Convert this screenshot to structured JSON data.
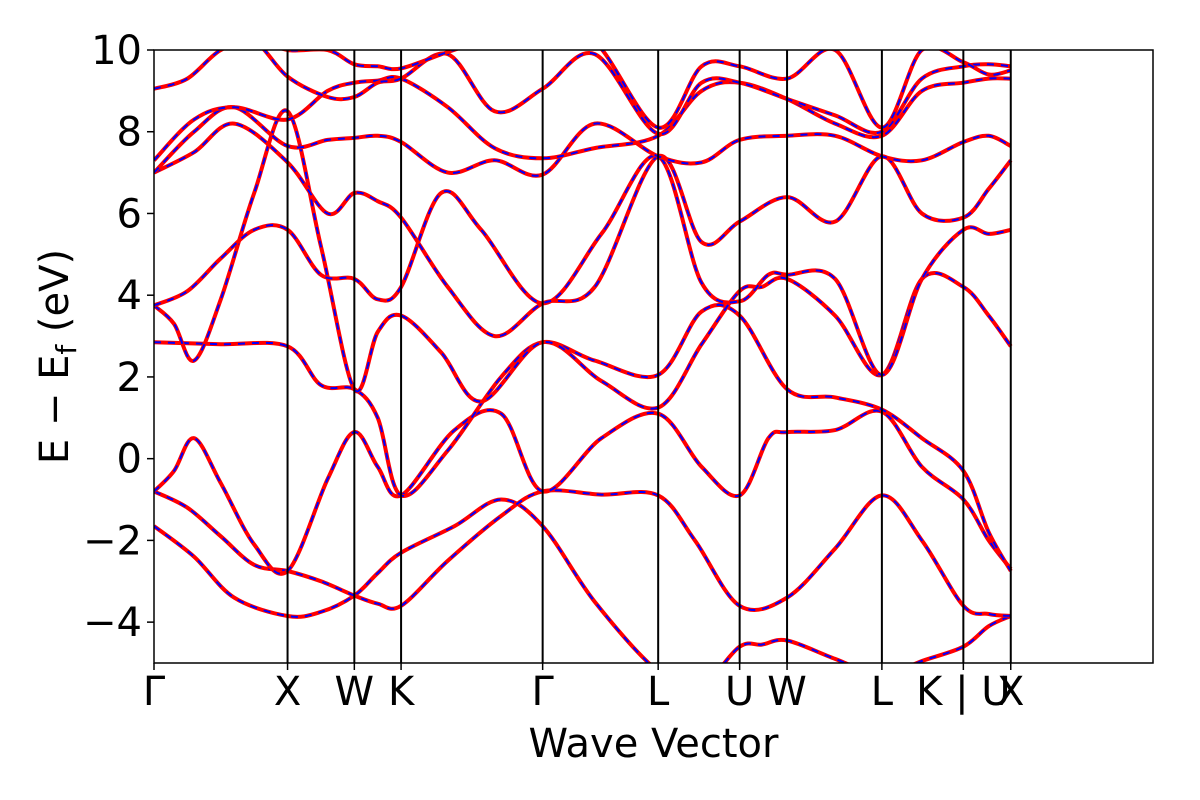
{
  "chart_data": {
    "type": "line",
    "title": "",
    "xlabel": "Wave Vector",
    "ylabel": "E − E",
    "ylabel_subscript": "f",
    "ylabel_unit": " (eV)",
    "ylim": [
      -5,
      10
    ],
    "yticks": [
      {
        "value": -4,
        "label": "−4"
      },
      {
        "value": -2,
        "label": "−2"
      },
      {
        "value": 0,
        "label": "0"
      },
      {
        "value": 2,
        "label": "2"
      },
      {
        "value": 4,
        "label": "4"
      },
      {
        "value": 6,
        "label": "6"
      },
      {
        "value": 8,
        "label": "8"
      },
      {
        "value": 10,
        "label": "10"
      }
    ],
    "xlim": [
      0,
      14.96
    ],
    "kpoints": [
      {
        "label": "Γ",
        "x": 0
      },
      {
        "label": "X",
        "x": 2.0
      },
      {
        "label": "W",
        "x": 3.0
      },
      {
        "label": "K",
        "x": 3.7
      },
      {
        "label": "Γ",
        "x": 5.82
      },
      {
        "label": "L",
        "x": 7.55
      },
      {
        "label": "U",
        "x": 8.77
      },
      {
        "label": "W",
        "x": 9.48
      },
      {
        "label": "L",
        "x": 10.9
      },
      {
        "label": "K | U",
        "x": 12.12
      },
      {
        "label": "X",
        "x": 12.83
      }
    ],
    "grid": false,
    "line_colors": {
      "solid": "#ff0000",
      "dashed": "#0000ff"
    },
    "series": [
      {
        "x": [
          0,
          0.6,
          1.2,
          2.0,
          2.5,
          3.0,
          3.35,
          3.7,
          4.5,
          5.2,
          5.82,
          6.6,
          7.55,
          8.2,
          8.77,
          9.1,
          9.48,
          10.2,
          10.9,
          11.5,
          12.12,
          12.5,
          12.83
        ],
        "y": [
          -1.65,
          -2.4,
          -3.4,
          -3.85,
          -3.75,
          -3.35,
          -2.8,
          -2.3,
          -1.65,
          -1.0,
          -1.65,
          -3.5,
          -5.2,
          -5.5,
          -4.6,
          -4.55,
          -4.45,
          -4.9,
          -5.3,
          -4.95,
          -4.6,
          -4.1,
          -3.85
        ]
      },
      {
        "x": [
          0,
          0.5,
          1.0,
          1.5,
          2.0,
          2.5,
          3.0,
          3.35,
          3.7,
          4.4,
          5.2,
          5.82,
          6.7,
          7.55,
          8.1,
          8.77,
          9.48,
          10.2,
          10.9,
          11.5,
          12.12,
          12.5,
          12.83
        ],
        "y": [
          -0.8,
          -1.2,
          -1.9,
          -2.6,
          -2.75,
          -3.0,
          -3.35,
          -3.55,
          -3.6,
          -2.5,
          -1.4,
          -0.8,
          -0.88,
          -0.9,
          -2.0,
          -3.6,
          -3.4,
          -2.2,
          -0.9,
          -2.0,
          -3.6,
          -3.8,
          -3.85
        ]
      },
      {
        "x": [
          0,
          0.3,
          0.6,
          1.0,
          1.5,
          2.0,
          2.6,
          3.0,
          3.35,
          3.7,
          4.5,
          5.2,
          5.82,
          6.7,
          7.55,
          8.2,
          8.77,
          9.2,
          9.48,
          10.2,
          10.9,
          11.5,
          12.12,
          12.5,
          12.83
        ],
        "y": [
          -0.8,
          -0.3,
          0.5,
          -0.6,
          -2.1,
          -2.75,
          -0.5,
          0.65,
          -0.2,
          -0.9,
          0.7,
          1.1,
          -0.8,
          0.5,
          1.1,
          -0.2,
          -0.9,
          0.5,
          0.65,
          0.7,
          1.15,
          -0.2,
          -1.0,
          -2.0,
          -2.7
        ]
      },
      {
        "x": [
          0,
          1.0,
          2.0,
          2.5,
          3.0,
          3.35,
          3.7,
          4.4,
          5.2,
          5.82,
          6.6,
          7.55,
          8.2,
          8.77,
          9.48,
          10.2,
          10.9,
          11.5,
          12.12,
          12.5,
          12.83
        ],
        "y": [
          2.85,
          2.8,
          2.75,
          1.8,
          1.7,
          1.0,
          -0.9,
          0.2,
          2.0,
          2.85,
          2.4,
          2.05,
          3.6,
          3.5,
          1.7,
          1.5,
          1.2,
          0.5,
          -0.3,
          -1.8,
          -2.75
        ]
      },
      {
        "x": [
          0,
          0.3,
          0.6,
          1.0,
          1.5,
          2.0,
          2.5,
          3.0,
          3.35,
          3.7,
          4.3,
          4.9,
          5.82,
          6.7,
          7.55,
          8.2,
          8.77,
          9.1,
          9.48,
          10.2,
          10.9,
          11.5,
          12.12,
          12.5,
          12.83
        ],
        "y": [
          3.75,
          3.3,
          2.4,
          3.9,
          6.5,
          8.5,
          5.2,
          1.7,
          3.1,
          3.5,
          2.6,
          1.4,
          2.85,
          1.9,
          1.25,
          2.8,
          4.1,
          4.2,
          4.4,
          3.5,
          2.05,
          4.4,
          4.2,
          3.5,
          2.75
        ]
      },
      {
        "x": [
          0,
          0.5,
          1.0,
          1.5,
          2.0,
          2.5,
          3.0,
          3.35,
          3.7,
          4.3,
          4.9,
          5.82,
          6.7,
          7.55,
          8.2,
          8.77,
          9.2,
          9.48,
          10.2,
          10.9,
          11.5,
          12.12,
          12.5,
          12.83
        ],
        "y": [
          3.75,
          4.1,
          4.9,
          5.6,
          5.6,
          4.5,
          4.4,
          3.9,
          4.2,
          6.5,
          5.6,
          3.8,
          5.5,
          7.4,
          4.3,
          3.85,
          4.5,
          4.5,
          4.4,
          2.05,
          4.4,
          5.6,
          5.5,
          5.6
        ]
      },
      {
        "x": [
          0,
          0.6,
          1.2,
          2.0,
          2.6,
          3.0,
          3.35,
          3.7,
          4.4,
          5.1,
          5.82,
          6.6,
          7.55,
          8.2,
          8.77,
          9.48,
          10.2,
          10.9,
          11.5,
          12.12,
          12.5,
          12.83
        ],
        "y": [
          7.0,
          7.5,
          8.2,
          7.25,
          6.0,
          6.5,
          6.3,
          5.9,
          4.2,
          3.0,
          3.8,
          4.2,
          7.4,
          5.3,
          5.8,
          6.4,
          5.8,
          7.4,
          6.0,
          5.9,
          6.6,
          7.3
        ]
      },
      {
        "x": [
          0,
          0.6,
          1.2,
          2.0,
          2.6,
          3.0,
          3.35,
          3.7,
          4.4,
          5.1,
          5.82,
          6.6,
          7.55,
          8.2,
          8.77,
          9.48,
          10.2,
          10.9,
          11.5,
          12.12,
          12.5,
          12.83
        ],
        "y": [
          7.0,
          8.0,
          8.6,
          7.65,
          7.8,
          7.85,
          7.9,
          7.75,
          7.0,
          7.3,
          6.95,
          8.2,
          7.4,
          7.25,
          7.8,
          7.9,
          7.9,
          7.4,
          7.3,
          7.75,
          7.9,
          7.65
        ]
      },
      {
        "x": [
          0,
          0.6,
          1.2,
          2.0,
          2.6,
          3.0,
          3.35,
          3.7,
          4.4,
          5.1,
          5.82,
          6.6,
          7.55,
          8.2,
          8.77,
          9.48,
          10.2,
          10.9,
          11.5,
          12.12,
          12.5,
          12.83
        ],
        "y": [
          7.3,
          8.3,
          8.6,
          8.3,
          9.0,
          9.2,
          9.25,
          9.3,
          8.6,
          7.6,
          7.35,
          7.6,
          7.9,
          9.0,
          9.2,
          8.8,
          8.2,
          7.9,
          9.0,
          9.2,
          9.3,
          9.3
        ]
      },
      {
        "x": [
          0,
          0.5,
          1.0,
          1.5,
          2.0,
          2.6,
          3.0,
          3.35,
          3.7,
          4.4,
          5.1,
          5.82,
          6.6,
          7.55,
          8.2,
          8.77,
          9.48,
          10.2,
          10.9,
          11.5,
          12.12,
          12.5,
          12.83
        ],
        "y": [
          9.05,
          9.3,
          10.0,
          10.2,
          9.35,
          8.85,
          8.85,
          9.2,
          9.3,
          9.9,
          8.5,
          9.05,
          9.9,
          7.95,
          9.2,
          9.2,
          8.8,
          8.4,
          8.0,
          9.3,
          9.6,
          9.65,
          9.6
        ]
      },
      {
        "x": [
          0,
          0.5,
          1.0,
          1.5,
          2.0,
          2.6,
          3.0,
          3.35,
          3.7,
          4.4,
          5.1,
          5.82,
          6.6,
          7.55,
          8.2,
          8.77,
          9.48,
          10.2,
          10.9,
          11.5,
          12.12,
          12.5,
          12.83
        ],
        "y": [
          10.2,
          10.3,
          10.4,
          10.3,
          10.0,
          10.0,
          9.65,
          9.6,
          9.55,
          9.95,
          10.3,
          10.4,
          10.2,
          8.1,
          9.6,
          9.6,
          9.3,
          10.0,
          8.1,
          10.0,
          9.7,
          9.4,
          9.5
        ]
      }
    ]
  }
}
